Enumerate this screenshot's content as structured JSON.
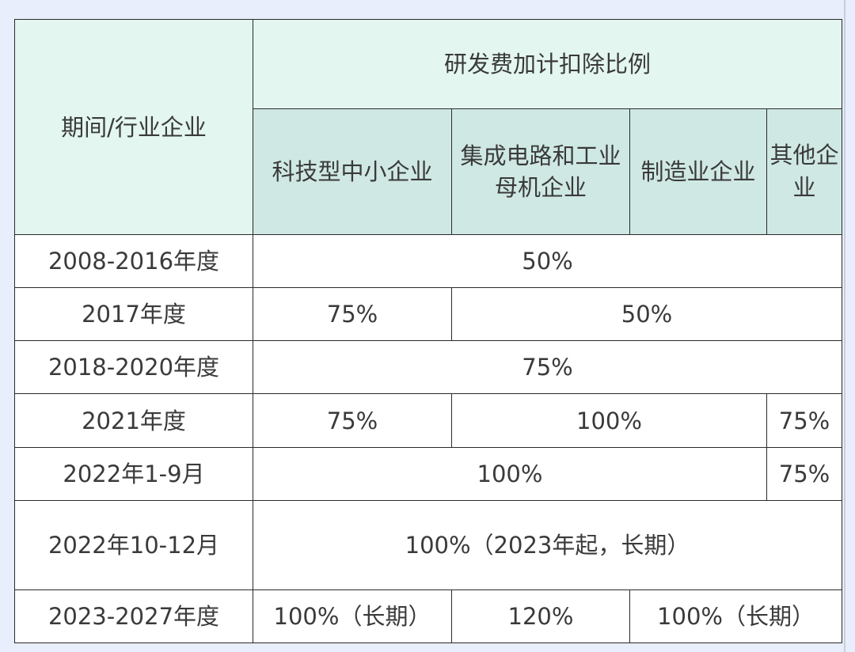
{
  "header": {
    "period_industry": "期间/行业企业",
    "ratio_title": "研发费加计扣除比例",
    "columns": [
      "科技型中小企业",
      "集成电路和工业母机企业",
      "制造业企业",
      "其他企业"
    ]
  },
  "rows": [
    {
      "period": "2008-2016年度",
      "cells": [
        "50%"
      ]
    },
    {
      "period": "2017年度",
      "cells": [
        "75%",
        "50%"
      ]
    },
    {
      "period": "2018-2020年度",
      "cells": [
        "75%"
      ]
    },
    {
      "period": "2021年度",
      "cells": [
        "75%",
        "100%",
        "75%"
      ]
    },
    {
      "period": "2022年1-9月",
      "cells": [
        "100%",
        "75%"
      ]
    },
    {
      "period": "2022年10-12月",
      "cells": [
        "100%（2023年起，长期）"
      ]
    },
    {
      "period": "2023-2027年度",
      "cells": [
        "100%（长期）",
        "120%",
        "100%（长期）"
      ]
    }
  ]
}
